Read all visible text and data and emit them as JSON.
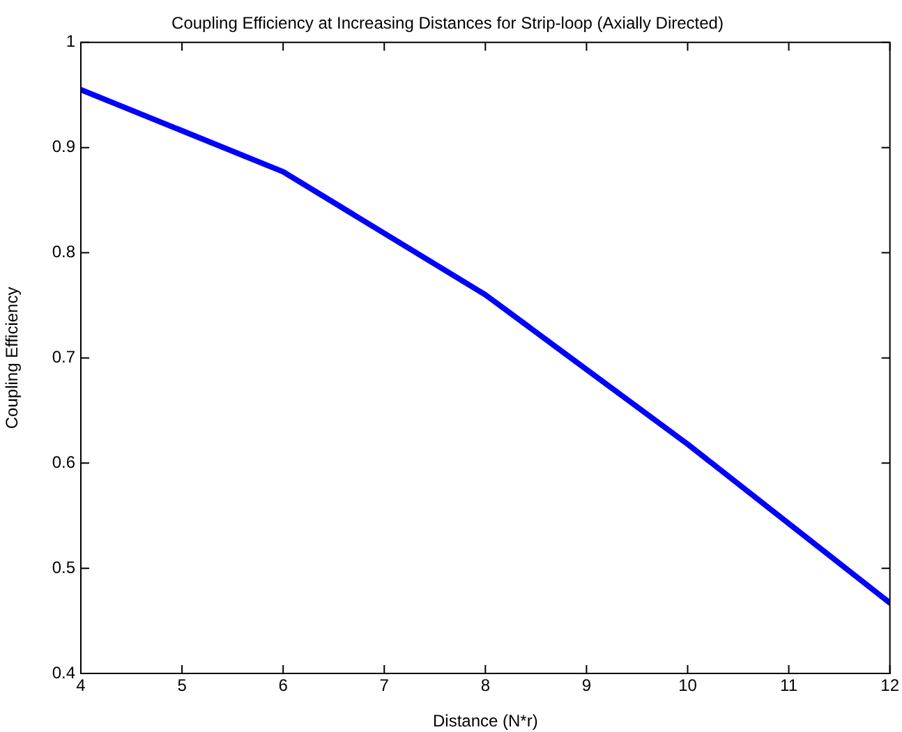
{
  "chart_data": {
    "type": "line",
    "title": "Coupling Efficiency at Increasing Distances for Strip-loop (Axially Directed)",
    "xlabel": "Distance (N*r)",
    "ylabel": "Coupling Efficiency",
    "x": [
      4,
      6,
      8,
      10,
      12
    ],
    "series": [
      {
        "color": "#0000ff",
        "values": [
          0.955,
          0.877,
          0.76,
          0.618,
          0.467
        ]
      }
    ],
    "xlim": [
      4,
      12
    ],
    "xticks": [
      4,
      5,
      6,
      7,
      8,
      9,
      10,
      11,
      12
    ],
    "ylim": [
      0.4,
      1
    ],
    "yticks": [
      0.4,
      0.5,
      0.6,
      0.7,
      0.8,
      0.9,
      1
    ],
    "grid": false,
    "legend": false,
    "marker": "none",
    "line_style": "solid"
  }
}
